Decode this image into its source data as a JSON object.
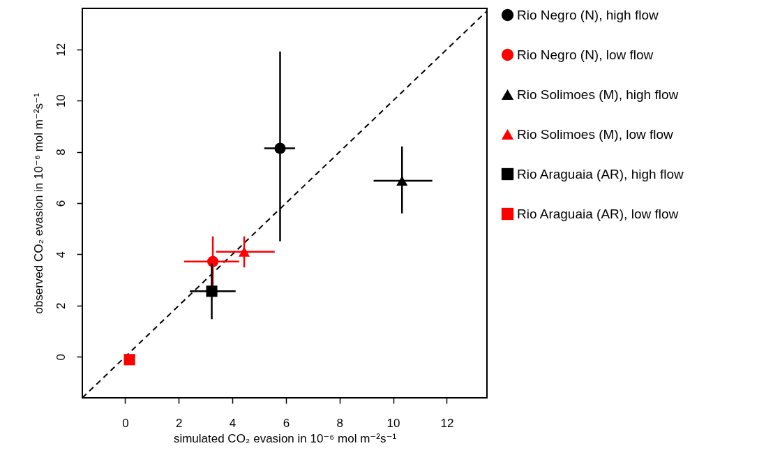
{
  "chart_data": {
    "type": "scatter",
    "xlabel": "simulated CO₂ evasion in 10⁻⁶ mol m⁻²s⁻¹",
    "ylabel": "observed CO₂ evasion in 10⁻⁶ mol m⁻²s⁻¹",
    "xlim": [
      -1.6,
      13.5
    ],
    "ylim": [
      -1.6,
      13.6
    ],
    "xticks": [
      0,
      2,
      4,
      6,
      8,
      10,
      12
    ],
    "yticks": [
      0,
      2,
      4,
      6,
      8,
      10,
      12
    ],
    "grid": false,
    "legend": "right",
    "series": [
      {
        "type": "line",
        "x": [
          -1.6,
          13.5
        ],
        "values": [
          -1.6,
          13.5
        ],
        "color": "#000000",
        "line_style": "dashed"
      },
      {
        "name": "Rio Negro (N), high flow",
        "color": "#000000",
        "marker": "circle",
        "x": [
          5.78
        ],
        "values": [
          8.14
        ],
        "xerrors": [
          [
            5.19,
            6.34
          ]
        ],
        "errors": [
          [
            4.51,
            11.92
          ]
        ]
      },
      {
        "name": "Rio Negro (N), low flow",
        "color": "#ff0000",
        "marker": "circle",
        "x": [
          3.27
        ],
        "values": [
          3.72
        ],
        "xerrors": [
          [
            2.2,
            4.25
          ]
        ],
        "errors": [
          [
            2.7,
            4.7
          ]
        ]
      },
      {
        "name": "Rio Solimoes (M), high flow",
        "color": "#000000",
        "marker": "triangle",
        "x": [
          10.33
        ],
        "values": [
          6.87
        ],
        "xerrors": [
          [
            9.27,
            11.46
          ]
        ],
        "errors": [
          [
            5.6,
            8.21
          ]
        ]
      },
      {
        "name": "Rio Solimoes (M), low flow",
        "color": "#ff0000",
        "marker": "triangle",
        "x": [
          4.44
        ],
        "values": [
          4.1
        ],
        "xerrors": [
          [
            3.39,
            5.58
          ]
        ],
        "errors": [
          [
            3.49,
            4.7
          ]
        ]
      },
      {
        "name": "Rio Araguaia (AR), high flow",
        "color": "#000000",
        "marker": "square",
        "x": [
          3.23
        ],
        "values": [
          2.56
        ],
        "xerrors": [
          [
            2.41,
            4.12
          ]
        ],
        "errors": [
          [
            1.47,
            3.65
          ]
        ]
      },
      {
        "name": "Rio Araguaia (AR), low flow",
        "color": "#ff0000",
        "marker": "square",
        "x": [
          0.16
        ],
        "values": [
          -0.11
        ]
      }
    ]
  }
}
